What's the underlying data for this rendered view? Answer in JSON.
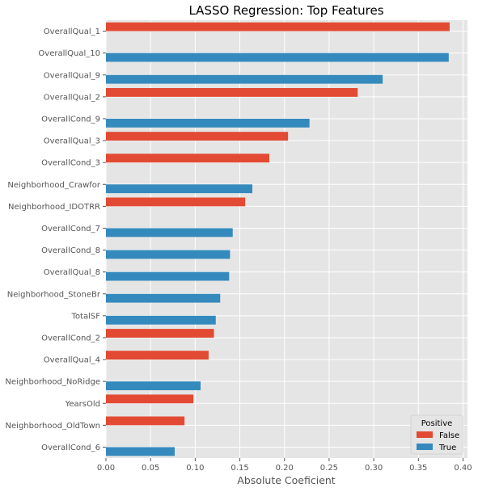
{
  "chart_data": {
    "type": "bar",
    "orientation": "horizontal",
    "title": "LASSO Regression: Top Features",
    "xlabel": "Absolute Coeficient",
    "ylabel": "",
    "xlim": [
      0,
      0.405
    ],
    "xticks": [
      "0.00",
      "0.05",
      "0.10",
      "0.15",
      "0.20",
      "0.25",
      "0.30",
      "0.35",
      "0.40"
    ],
    "grid": true,
    "legend": {
      "title": "Positive",
      "placement": "bottom-right",
      "entries": [
        "False",
        "True"
      ]
    },
    "series_colors": {
      "False": "#E24A33",
      "True": "#348ABD"
    },
    "categories": [
      "OverallQual_1",
      "OverallQual_10",
      "OverallQual_9",
      "OverallQual_2",
      "OverallCond_9",
      "OverallQual_3",
      "OverallCond_3",
      "Neighborhood_Crawfor",
      "Neighborhood_IDOTRR",
      "OverallCond_7",
      "OverallCond_8",
      "OverallQual_8",
      "Neighborhood_StoneBr",
      "TotalSF",
      "OverallCond_2",
      "OverallQual_4",
      "Neighborhood_NoRidge",
      "YearsOld",
      "Neighborhood_OldTown",
      "OverallCond_6"
    ],
    "bars": [
      {
        "feature": "OverallQual_1",
        "positive": "False",
        "value": 0.385
      },
      {
        "feature": "OverallQual_10",
        "positive": "True",
        "value": 0.384
      },
      {
        "feature": "OverallQual_9",
        "positive": "True",
        "value": 0.31
      },
      {
        "feature": "OverallQual_2",
        "positive": "False",
        "value": 0.282
      },
      {
        "feature": "OverallCond_9",
        "positive": "True",
        "value": 0.228
      },
      {
        "feature": "OverallQual_3",
        "positive": "False",
        "value": 0.204
      },
      {
        "feature": "OverallCond_3",
        "positive": "False",
        "value": 0.183
      },
      {
        "feature": "Neighborhood_Crawfor",
        "positive": "True",
        "value": 0.164
      },
      {
        "feature": "Neighborhood_IDOTRR",
        "positive": "False",
        "value": 0.156
      },
      {
        "feature": "OverallCond_7",
        "positive": "True",
        "value": 0.142
      },
      {
        "feature": "OverallCond_8",
        "positive": "True",
        "value": 0.139
      },
      {
        "feature": "OverallQual_8",
        "positive": "True",
        "value": 0.138
      },
      {
        "feature": "Neighborhood_StoneBr",
        "positive": "True",
        "value": 0.128
      },
      {
        "feature": "TotalSF",
        "positive": "True",
        "value": 0.123
      },
      {
        "feature": "OverallCond_2",
        "positive": "False",
        "value": 0.121
      },
      {
        "feature": "OverallQual_4",
        "positive": "False",
        "value": 0.115
      },
      {
        "feature": "Neighborhood_NoRidge",
        "positive": "True",
        "value": 0.106
      },
      {
        "feature": "YearsOld",
        "positive": "False",
        "value": 0.098
      },
      {
        "feature": "Neighborhood_OldTown",
        "positive": "False",
        "value": 0.088
      },
      {
        "feature": "OverallCond_6",
        "positive": "True",
        "value": 0.077
      }
    ]
  }
}
